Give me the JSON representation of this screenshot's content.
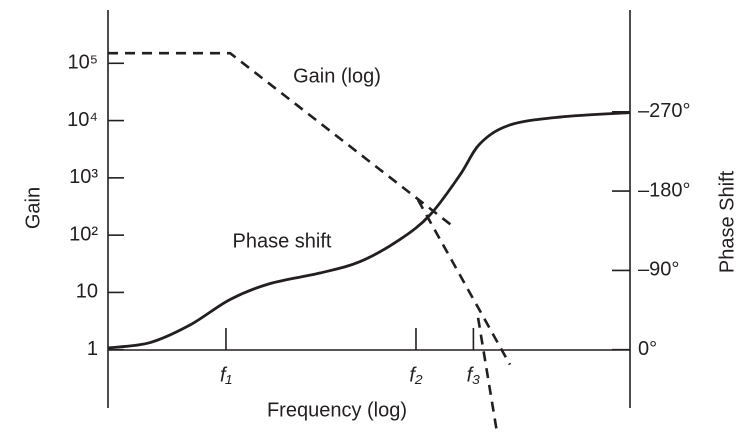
{
  "chart_data": {
    "type": "line",
    "xlabel": "Frequency (log)",
    "ylabel": "Gain",
    "y2label": "Phase Shift",
    "xlim": [
      0,
      1
    ],
    "xticks": [
      {
        "value": 0.226,
        "label": "f₁"
      },
      {
        "value": 0.59,
        "label": "f₂"
      },
      {
        "value": 0.7,
        "label": "f₃"
      }
    ],
    "ylim": [
      0.1,
      1000000
    ],
    "yscale": "log",
    "yticks": [
      1,
      10,
      {
        "value": 100,
        "label": "10²"
      },
      {
        "value": 1000,
        "label": "10³"
      },
      {
        "value": 10000,
        "label": "10⁴"
      },
      {
        "value": 100000,
        "label": "10⁵"
      }
    ],
    "y2lim": [
      65,
      -390
    ],
    "y2ticks": [
      {
        "value": 0,
        "label": "0°"
      },
      {
        "value": -90,
        "label": "–90°"
      },
      {
        "value": -180,
        "label": "–180°"
      },
      {
        "value": -270,
        "label": "–270°"
      }
    ],
    "series": [
      {
        "name": "Gain (log)",
        "color": "#231f20",
        "dashed": true,
        "x": [
          0,
          0.234,
          0.665,
          null,
          0.594,
          0.77,
          null,
          0.709,
          0.745
        ],
        "values": [
          150000,
          150000,
          133,
          null,
          410,
          0.55,
          null,
          3.6,
          0.037
        ]
      },
      {
        "name": "Phase shift",
        "color": "#231f20",
        "dashed": false,
        "axis": "y2",
        "x": [
          0,
          0.08,
          0.157,
          0.234,
          0.31,
          0.406,
          0.483,
          0.559,
          0.617,
          0.674,
          0.713,
          0.77,
          0.866,
          1.0
        ],
        "values": [
          -2,
          -8,
          -28,
          -57,
          -75,
          -87,
          -100,
          -125,
          -153,
          -198,
          -234,
          -255,
          -264,
          -269
        ]
      }
    ]
  }
}
